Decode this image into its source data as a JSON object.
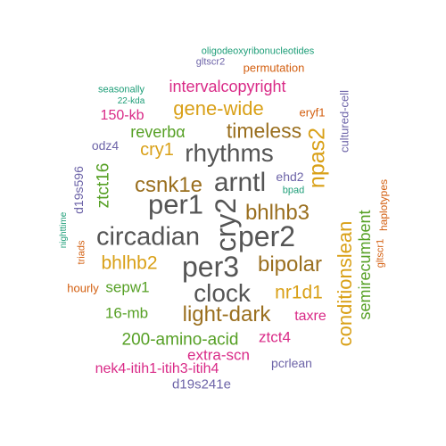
{
  "colors": {
    "dark": "#555555",
    "gold": "#9a6f1f",
    "amber": "#d9a017",
    "green": "#56a025",
    "magenta": "#d92a87",
    "orange": "#d35f10",
    "purple": "#6d64a8",
    "teal": "#1e9e78"
  },
  "words": [
    {
      "text": "per1",
      "color": "dark",
      "rank": 1
    },
    {
      "text": "cry2",
      "color": "dark",
      "rank": 1
    },
    {
      "text": "per2",
      "color": "dark",
      "rank": 1
    },
    {
      "text": "per3",
      "color": "dark",
      "rank": 1
    },
    {
      "text": "arntl",
      "color": "dark",
      "rank": 1
    },
    {
      "text": "circadian",
      "color": "dark",
      "rank": 1
    },
    {
      "text": "rhythms",
      "color": "dark",
      "rank": 1
    },
    {
      "text": "clock",
      "color": "dark",
      "rank": 2
    },
    {
      "text": "bhlhb3",
      "color": "gold",
      "rank": 2
    },
    {
      "text": "timeless",
      "color": "gold",
      "rank": 2
    },
    {
      "text": "csnk1e",
      "color": "gold",
      "rank": 2
    },
    {
      "text": "bipolar",
      "color": "gold",
      "rank": 2
    },
    {
      "text": "light-dark",
      "color": "gold",
      "rank": 2
    },
    {
      "text": "npas2",
      "color": "amber",
      "rank": 2
    },
    {
      "text": "conditionslean",
      "color": "amber",
      "rank": 2
    },
    {
      "text": "gene-wide",
      "color": "amber",
      "rank": 2
    },
    {
      "text": "bhlhb2",
      "color": "amber",
      "rank": 3
    },
    {
      "text": "nr1d1",
      "color": "amber",
      "rank": 3
    },
    {
      "text": "cry1",
      "color": "amber",
      "rank": 3
    },
    {
      "text": "200-amino-acid",
      "color": "green",
      "rank": 3
    },
    {
      "text": "semirecumbent",
      "color": "green",
      "rank": 3
    },
    {
      "text": "ztct16",
      "color": "green",
      "rank": 3
    },
    {
      "text": "reverbα",
      "color": "green",
      "rank": 3
    },
    {
      "text": "16-mb",
      "color": "green",
      "rank": 4
    },
    {
      "text": "sepw1",
      "color": "green",
      "rank": 4
    },
    {
      "text": "intervalcopyright",
      "color": "magenta",
      "rank": 3
    },
    {
      "text": "150-kb",
      "color": "magenta",
      "rank": 4
    },
    {
      "text": "taxre",
      "color": "magenta",
      "rank": 4
    },
    {
      "text": "ztct4",
      "color": "magenta",
      "rank": 4
    },
    {
      "text": "extra-scn",
      "color": "magenta",
      "rank": 4
    },
    {
      "text": "nek4-itih1-itih3-itih4",
      "color": "magenta",
      "rank": 4
    },
    {
      "text": "eryf1",
      "color": "orange",
      "rank": 5
    },
    {
      "text": "permutation",
      "color": "orange",
      "rank": 5
    },
    {
      "text": "hourly",
      "color": "orange",
      "rank": 5
    },
    {
      "text": "haplotypes",
      "color": "orange",
      "rank": 6
    },
    {
      "text": "triads",
      "color": "orange",
      "rank": 6
    },
    {
      "text": "gltscr1",
      "color": "orange",
      "rank": 6
    },
    {
      "text": "cultured-cell",
      "color": "purple",
      "rank": 5
    },
    {
      "text": "odz4",
      "color": "purple",
      "rank": 5
    },
    {
      "text": "ehd2",
      "color": "purple",
      "rank": 5
    },
    {
      "text": "d19s596",
      "color": "purple",
      "rank": 5
    },
    {
      "text": "pcrlean",
      "color": "purple",
      "rank": 5
    },
    {
      "text": "d19s241e",
      "color": "purple",
      "rank": 5
    },
    {
      "text": "gltscr2",
      "color": "purple",
      "rank": 6
    },
    {
      "text": "bpad",
      "color": "teal",
      "rank": 6
    },
    {
      "text": "seasonally",
      "color": "teal",
      "rank": 6
    },
    {
      "text": "22-kda",
      "color": "teal",
      "rank": 6
    },
    {
      "text": "nighttime",
      "color": "teal",
      "rank": 6
    },
    {
      "text": "oligodeoxyribonucleotides",
      "color": "teal",
      "rank": 6
    }
  ]
}
